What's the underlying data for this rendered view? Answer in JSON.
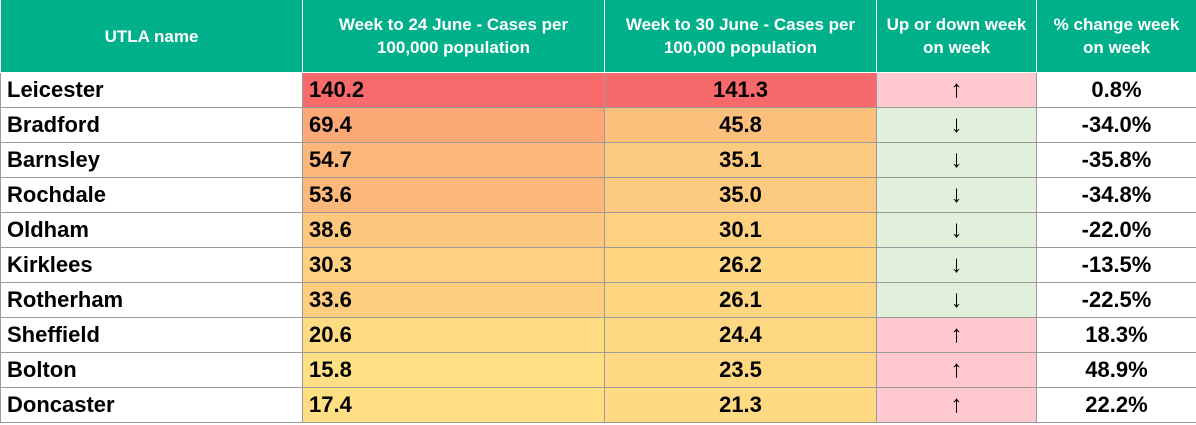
{
  "chart_data": {
    "type": "table",
    "columns": [
      "UTLA name",
      "Week to 24 June - Cases per 100,000 population",
      "Week to 30 June - Cases per 100,000 population",
      "Up or down week on week",
      "% change week on week"
    ],
    "rows": [
      {
        "name": "Leicester",
        "week_24_june": "140.2",
        "week_30_june": "141.3",
        "direction": "up",
        "change": "0.8%"
      },
      {
        "name": "Bradford",
        "week_24_june": "69.4",
        "week_30_june": "45.8",
        "direction": "down",
        "change": "-34.0%"
      },
      {
        "name": "Barnsley",
        "week_24_june": "54.7",
        "week_30_june": "35.1",
        "direction": "down",
        "change": "-35.8%"
      },
      {
        "name": "Rochdale",
        "week_24_june": "53.6",
        "week_30_june": "35.0",
        "direction": "down",
        "change": "-34.8%"
      },
      {
        "name": "Oldham",
        "week_24_june": "38.6",
        "week_30_june": "30.1",
        "direction": "down",
        "change": "-22.0%"
      },
      {
        "name": "Kirklees",
        "week_24_june": "30.3",
        "week_30_june": "26.2",
        "direction": "down",
        "change": "-13.5%"
      },
      {
        "name": "Rotherham",
        "week_24_june": "33.6",
        "week_30_june": "26.1",
        "direction": "down",
        "change": "-22.5%"
      },
      {
        "name": "Sheffield",
        "week_24_june": "20.6",
        "week_30_june": "24.4",
        "direction": "up",
        "change": "18.3%"
      },
      {
        "name": "Bolton",
        "week_24_june": "15.8",
        "week_30_june": "23.5",
        "direction": "up",
        "change": "48.9%"
      },
      {
        "name": "Doncaster",
        "week_24_june": "17.4",
        "week_30_june": "21.3",
        "direction": "up",
        "change": "22.2%"
      }
    ],
    "arrow_glyphs": {
      "up": "↑",
      "down": "↓"
    },
    "colors": {
      "header": "#00b08b",
      "scale_high": "#f8696b",
      "scale_mid": "#fbaa77",
      "scale_low": "#ffe084",
      "up_fill": "#ffc7ce",
      "down_fill": "#e2efda"
    }
  }
}
